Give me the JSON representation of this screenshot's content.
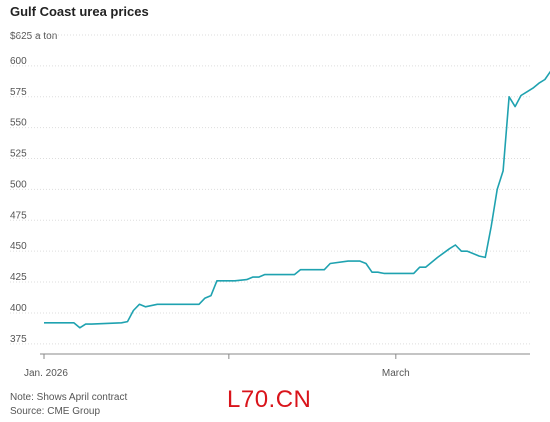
{
  "chart_data": {
    "type": "line",
    "title": "Gulf Coast urea prices",
    "unit_label": "$625 a ton",
    "x_axis": {
      "range": [
        "2026-01-01",
        "2026-03-23"
      ],
      "ticks": [
        {
          "date": "2026-01-01",
          "label": "Jan. 2026"
        },
        {
          "date": "2026-02-01",
          "label": ""
        },
        {
          "date": "2026-03-01",
          "label": "March"
        }
      ]
    },
    "y_axis": {
      "range": [
        370,
        625
      ],
      "ticks": [
        375,
        400,
        425,
        450,
        475,
        500,
        525,
        550,
        575,
        600
      ],
      "gridlines": true
    },
    "series": [
      {
        "color": "#1fa2b0",
        "points": [
          [
            "2026-01-01",
            392
          ],
          [
            "2026-01-06",
            392
          ],
          [
            "2026-01-07",
            388
          ],
          [
            "2026-01-08",
            391
          ],
          [
            "2026-01-09",
            391
          ],
          [
            "2026-01-14",
            392
          ],
          [
            "2026-01-15",
            393
          ],
          [
            "2026-01-16",
            402
          ],
          [
            "2026-01-17",
            407
          ],
          [
            "2026-01-18",
            405
          ],
          [
            "2026-01-20",
            407
          ],
          [
            "2026-01-27",
            407
          ],
          [
            "2026-01-28",
            412
          ],
          [
            "2026-01-29",
            414
          ],
          [
            "2026-01-30",
            426
          ],
          [
            "2026-02-02",
            426
          ],
          [
            "2026-02-04",
            427
          ],
          [
            "2026-02-05",
            429
          ],
          [
            "2026-02-06",
            429
          ],
          [
            "2026-02-07",
            431
          ],
          [
            "2026-02-12",
            431
          ],
          [
            "2026-02-13",
            435
          ],
          [
            "2026-02-17",
            435
          ],
          [
            "2026-02-18",
            440
          ],
          [
            "2026-02-21",
            442
          ],
          [
            "2026-02-22",
            442
          ],
          [
            "2026-02-23",
            442
          ],
          [
            "2026-02-24",
            440
          ],
          [
            "2026-02-25",
            433
          ],
          [
            "2026-02-26",
            433
          ],
          [
            "2026-02-27",
            432
          ],
          [
            "2026-03-02",
            432
          ],
          [
            "2026-03-04",
            432
          ],
          [
            "2026-03-05",
            437
          ],
          [
            "2026-03-06",
            437
          ],
          [
            "2026-03-08",
            445
          ],
          [
            "2026-03-10",
            452
          ],
          [
            "2026-03-11",
            455
          ],
          [
            "2026-03-12",
            450
          ],
          [
            "2026-03-13",
            450
          ],
          [
            "2026-03-15",
            446
          ],
          [
            "2026-03-16",
            445
          ],
          [
            "2026-03-17",
            470
          ],
          [
            "2026-03-18",
            500
          ],
          [
            "2026-03-19",
            515
          ],
          [
            "2026-03-20",
            575
          ],
          [
            "2026-03-21",
            567
          ],
          [
            "2026-03-22",
            576
          ],
          [
            "2026-03-23",
            579
          ],
          [
            "2026-03-24",
            582
          ],
          [
            "2026-03-25",
            586
          ],
          [
            "2026-03-26",
            589
          ],
          [
            "2026-03-27",
            596
          ],
          [
            "2026-03-28",
            602
          ]
        ]
      }
    ]
  },
  "notes": {
    "note": "Note: Shows April contract",
    "source": "Source: CME Group"
  },
  "watermark": "L70.CN"
}
